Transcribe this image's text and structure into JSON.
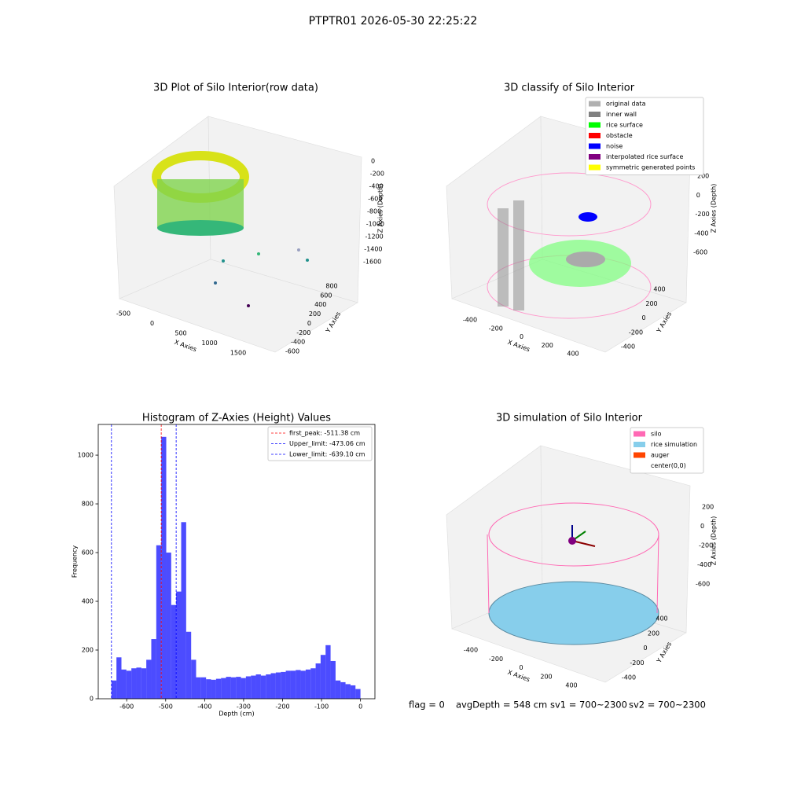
{
  "title": "PTPTR01 2026-05-30 22:25:22",
  "chart_data": [
    {
      "type": "scatter3d",
      "title": "3D Plot of Silo Interior(row data)",
      "xlabel": "X Axies",
      "ylabel": "Y Axies",
      "zlabel": "Z Axies (Depth)",
      "xticks": [
        -500,
        0,
        500,
        1000,
        1500
      ],
      "yticks": [
        800,
        600,
        400,
        200,
        0,
        -200,
        -400,
        -600
      ],
      "zticks": [
        0,
        -200,
        -400,
        -600,
        -800,
        -1000,
        -1200,
        -1400,
        -1600
      ]
    },
    {
      "type": "scatter3d",
      "title": "3D classify of Silo Interior",
      "xlabel": "X Axies",
      "ylabel": "Y Axies",
      "zlabel": "Z Axies (Depth)",
      "xticks": [
        -400,
        -200,
        0,
        200,
        400
      ],
      "yticks": [
        400,
        200,
        0,
        -200,
        -400
      ],
      "zticks": [
        200,
        0,
        -200,
        -400,
        -600
      ],
      "legend": [
        {
          "name": "original data",
          "color": "#b0b0b0"
        },
        {
          "name": "inner wall",
          "color": "#808080"
        },
        {
          "name": "rice surface",
          "color": "#00ff00"
        },
        {
          "name": "obstacle",
          "color": "#ff0000"
        },
        {
          "name": "noise",
          "color": "#0000ff"
        },
        {
          "name": "interpolated rice surface",
          "color": "#800080"
        },
        {
          "name": "symmetric generated points",
          "color": "#ffff00"
        }
      ]
    },
    {
      "type": "histogram",
      "title": "Histogram of Z-Axies (Height) Values",
      "xlabel": "Depth (cm)",
      "ylabel": "Frequency",
      "color": "#0000ff",
      "bins": [
        -639.1,
        -626.3,
        -613.5,
        -600.8,
        -588.0,
        -575.2,
        -562.4,
        -549.7,
        -536.9,
        -524.1,
        -511.3,
        -498.5,
        -485.8,
        -473.0,
        -460.2,
        -447.4,
        -434.6,
        -421.9,
        -409.1,
        -396.3,
        -383.5,
        -370.7,
        -358.0,
        -345.2,
        -332.4,
        -319.6,
        -306.8,
        -294.1,
        -281.3,
        -268.5,
        -255.7,
        -242.9,
        -230.2,
        -217.4,
        -204.6,
        -191.8,
        -179.0,
        -166.3,
        -153.5,
        -140.7,
        -127.9,
        -115.1,
        -102.4,
        -89.6,
        -76.8,
        -64.0,
        -51.2,
        -38.5,
        -25.7,
        -12.9,
        -0.1
      ],
      "values": [
        75,
        170,
        120,
        115,
        125,
        128,
        125,
        160,
        245,
        630,
        1075,
        600,
        385,
        440,
        725,
        275,
        160,
        88,
        88,
        80,
        78,
        82,
        85,
        90,
        88,
        90,
        85,
        92,
        95,
        100,
        95,
        100,
        105,
        108,
        110,
        115,
        115,
        118,
        115,
        120,
        125,
        145,
        180,
        220,
        155,
        75,
        68,
        60,
        55,
        40
      ],
      "xlim": [
        -673,
        37
      ],
      "ylim": [
        0,
        1126
      ],
      "xticks": [
        -600,
        -500,
        -400,
        -300,
        -200,
        -100,
        0
      ],
      "yticks": [
        0,
        200,
        400,
        600,
        800,
        1000
      ],
      "vlines": [
        {
          "name": "first_peak: -511.38 cm",
          "value": -511.38,
          "color": "#ff0000"
        },
        {
          "name": "Upper_limit: -473.06 cm",
          "value": -473.06,
          "color": "#0000ff"
        },
        {
          "name": "Lower_limit: -639.10 cm",
          "value": -639.1,
          "color": "#0000ff"
        }
      ]
    },
    {
      "type": "scatter3d",
      "title": "3D simulation of Silo Interior",
      "xlabel": "X Axies",
      "ylabel": "Y Axies",
      "zlabel": "Z Axies (Depth)",
      "xticks": [
        -400,
        -200,
        0,
        200,
        400
      ],
      "yticks": [
        400,
        200,
        0,
        -200,
        -400
      ],
      "zticks": [
        200,
        0,
        -200,
        -400,
        -600
      ],
      "legend": [
        {
          "name": "silo",
          "color": "#ff69b4"
        },
        {
          "name": "rice simulation",
          "color": "#87ceeb"
        },
        {
          "name": "auger",
          "color": "#ff4500"
        },
        {
          "name": "center(0,0)",
          "color": "#ffffff"
        }
      ]
    }
  ],
  "status": [
    "flag = 0",
    "avgDepth = 548 cm",
    "sv1 = 700~2300",
    "sv2 = 700~2300"
  ]
}
